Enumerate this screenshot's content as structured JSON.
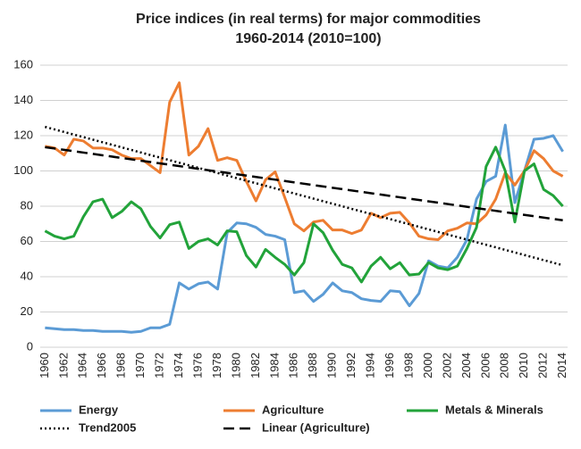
{
  "chart_data": {
    "type": "line",
    "title": "Price indices (in real terms) for major commodities",
    "subtitle": "1960-2014 (2010=100)",
    "x": [
      1960,
      1961,
      1962,
      1963,
      1964,
      1965,
      1966,
      1967,
      1968,
      1969,
      1970,
      1971,
      1972,
      1973,
      1974,
      1975,
      1976,
      1977,
      1978,
      1979,
      1980,
      1981,
      1982,
      1983,
      1984,
      1985,
      1986,
      1987,
      1988,
      1989,
      1990,
      1991,
      1992,
      1993,
      1994,
      1995,
      1996,
      1997,
      1998,
      1999,
      2000,
      2001,
      2002,
      2003,
      2004,
      2005,
      2006,
      2007,
      2008,
      2009,
      2010,
      2011,
      2012,
      2013,
      2014
    ],
    "xlim": [
      1959.5,
      2014.5
    ],
    "xticks": [
      1960,
      1962,
      1964,
      1966,
      1968,
      1970,
      1972,
      1974,
      1976,
      1978,
      1980,
      1982,
      1984,
      1986,
      1988,
      1990,
      1992,
      1994,
      1996,
      1998,
      2000,
      2002,
      2004,
      2006,
      2008,
      2010,
      2012,
      2014
    ],
    "ylim": [
      0,
      160
    ],
    "yticks": [
      0,
      20,
      40,
      60,
      80,
      100,
      120,
      140,
      160
    ],
    "grid": true,
    "legend": "bottom",
    "series": [
      {
        "name": "Energy",
        "color": "#5b9bd5",
        "dash": "solid",
        "values": [
          11,
          10.5,
          10,
          10,
          9.5,
          9.5,
          9,
          9,
          9,
          8.5,
          9,
          11,
          11,
          13,
          36.5,
          33,
          36,
          37,
          33,
          65,
          70.5,
          70,
          68,
          64,
          63,
          61,
          31,
          32,
          26,
          30,
          36.5,
          32,
          31,
          27.5,
          26.5,
          26,
          32,
          31.5,
          23.5,
          30.5,
          49,
          46,
          45,
          51,
          61,
          84,
          94,
          97,
          126,
          82,
          100,
          118,
          118.5,
          120,
          111
        ]
      },
      {
        "name": "Agriculture",
        "color": "#ed7d31",
        "dash": "solid",
        "values": [
          114,
          113,
          109,
          118,
          117,
          113,
          113,
          112,
          109,
          107,
          107,
          103,
          99,
          139,
          150,
          109,
          114,
          124,
          106,
          107.5,
          106,
          94,
          83,
          95,
          99.5,
          85,
          70,
          66,
          71,
          72,
          66.5,
          66.5,
          64.5,
          66.5,
          76,
          73.5,
          76,
          76.5,
          70.5,
          63,
          61.5,
          61,
          66,
          67.5,
          70.5,
          70,
          75,
          84,
          99,
          92,
          100,
          111.5,
          107,
          100,
          97
        ]
      },
      {
        "name": "Metals & Minerals",
        "color": "#22a33a",
        "dash": "solid",
        "values": [
          66,
          63,
          61.5,
          63,
          74,
          82.5,
          84,
          73.5,
          77,
          82.5,
          78.5,
          68.5,
          62,
          69.5,
          71,
          56,
          60,
          61.5,
          58,
          66,
          65.5,
          52,
          45.5,
          55.5,
          51,
          47,
          41,
          48,
          70,
          65,
          55,
          47,
          45,
          37,
          46,
          51,
          44.5,
          48,
          41,
          41.5,
          48,
          45,
          44,
          46,
          56,
          68,
          102.5,
          113.5,
          100,
          71,
          100,
          104,
          89.5,
          86,
          80
        ]
      },
      {
        "name": "Trend2005",
        "color": "#000000",
        "dash": "dotted",
        "x": [
          1960,
          2014
        ],
        "values": [
          125,
          46.5
        ]
      },
      {
        "name": "Linear (Agriculture)",
        "color": "#000000",
        "dash": "dashed",
        "x": [
          1960,
          2014
        ],
        "values": [
          113.5,
          72
        ]
      }
    ]
  }
}
